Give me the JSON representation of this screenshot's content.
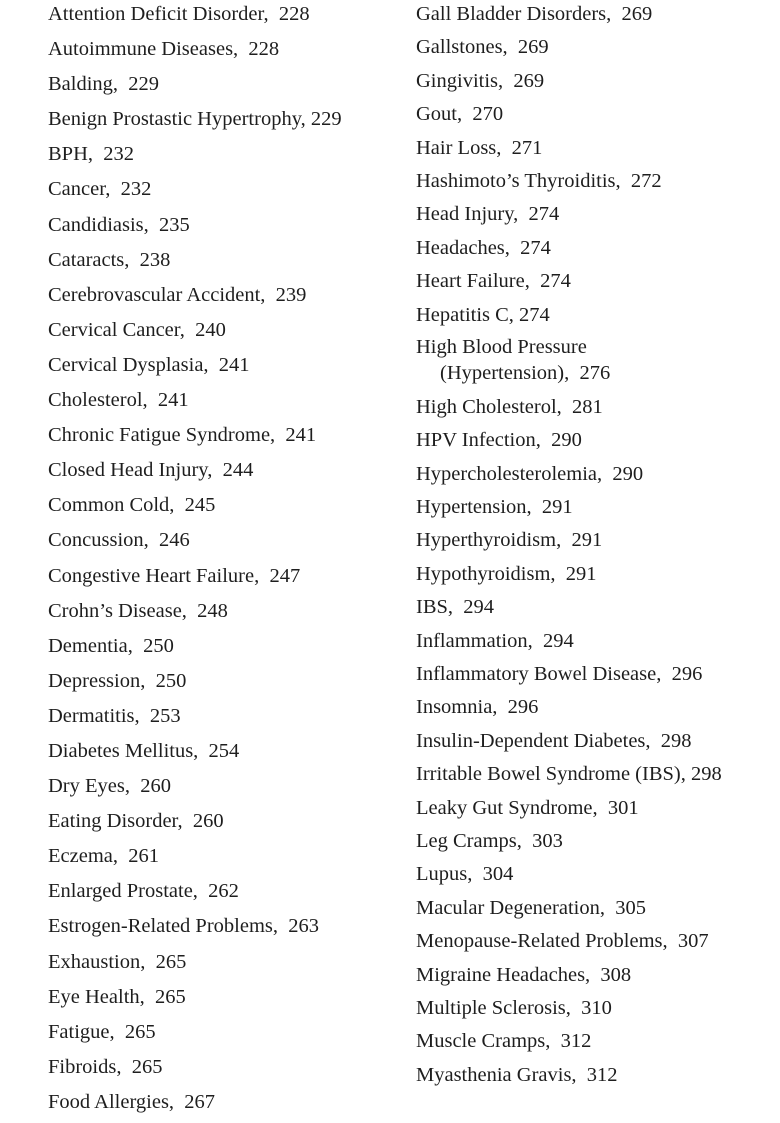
{
  "left_column": [
    "Attention Deficit Disorder,  228",
    "Autoimmune Diseases,  228",
    "Balding,  229",
    "Benign Prostastic Hypertrophy, 229",
    "BPH,  232",
    "Cancer,  232",
    "Candidiasis,  235",
    "Cataracts,  238",
    "Cerebrovascular Accident,  239",
    "Cervical Cancer,  240",
    "Cervical Dysplasia,  241",
    "Cholesterol,  241",
    "Chronic Fatigue Syndrome,  241",
    "Closed Head Injury,  244",
    "Common Cold,  245",
    "Concussion,  246",
    "Congestive Heart Failure,  247",
    "Crohn’s Disease,  248",
    "Dementia,  250",
    "Depression,  250",
    "Dermatitis,  253",
    "Diabetes Mellitus,  254",
    "Dry Eyes,  260",
    "Eating Disorder,  260",
    "Eczema,  261",
    "Enlarged Prostate,  262",
    "Estrogen-Related Problems,  263",
    "Exhaustion,  265",
    "Eye Health,  265",
    "Fatigue,  265",
    "Fibroids,  265",
    "Food Allergies,  267"
  ],
  "right_column": [
    "Gall Bladder Disorders,  269",
    "Gallstones,  269",
    "Gingivitis,  269",
    "Gout,  270",
    "Hair Loss,  271",
    "Hashimoto’s Thyroiditis,  272",
    "Head Injury,  274",
    "Headaches,  274",
    "Heart Failure,  274",
    "Hepatitis C, 274",
    "High Blood Pressure",
    "High Cholesterol,  281",
    "HPV Infection,  290",
    "Hypercholesterolemia,  290",
    "Hypertension,  291",
    "Hyperthyroidism,  291",
    "Hypothyroidism,  291",
    "IBS,  294",
    "Inflammation,  294",
    "Inflammatory Bowel Disease,  296",
    "Insomnia,  296",
    "Insulin-Dependent Diabetes,  298",
    "Irritable Bowel Syndrome (IBS), 298",
    "Leaky Gut Syndrome,  301",
    "Leg Cramps,  303",
    "Lupus,  304",
    "Macular Degeneration,  305",
    "Menopause-Related Problems,  307",
    "Migraine Headaches,  308",
    "Multiple Sclerosis,  310",
    "Muscle Cramps,  312",
    "Myasthenia Gravis,  312"
  ],
  "wrapped_continuation": "(Hypertension),  276"
}
